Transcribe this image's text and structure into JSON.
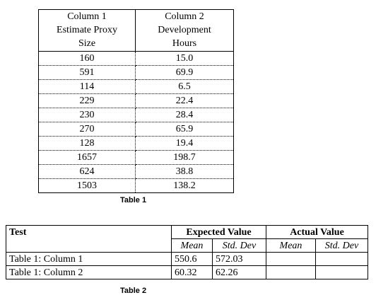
{
  "table1": {
    "header_lines": {
      "col1": [
        "Column 1",
        "Estimate Proxy",
        "Size"
      ],
      "col2": [
        "Column 2",
        "Development",
        "Hours"
      ]
    },
    "rows": [
      {
        "size": "160",
        "hours": "15.0"
      },
      {
        "size": "591",
        "hours": "69.9"
      },
      {
        "size": "114",
        "hours": "6.5"
      },
      {
        "size": "229",
        "hours": "22.4"
      },
      {
        "size": "230",
        "hours": "28.4"
      },
      {
        "size": "270",
        "hours": "65.9"
      },
      {
        "size": "128",
        "hours": "19.4"
      },
      {
        "size": "1657",
        "hours": "198.7"
      },
      {
        "size": "624",
        "hours": "38.8"
      },
      {
        "size": "1503",
        "hours": "138.2"
      }
    ],
    "caption": "Table 1"
  },
  "table2": {
    "test_header": "Test",
    "expected_header": "Expected Value",
    "actual_header": "Actual Value",
    "sub_headers": {
      "expected_mean": "Mean",
      "expected_std": "Std. Dev",
      "actual_mean": "Mean",
      "actual_std": "Std. Dev"
    },
    "rows": [
      {
        "test": "Table 1: Column 1",
        "expected_mean": "550.6",
        "expected_std": "572.03",
        "actual_mean": "",
        "actual_std": ""
      },
      {
        "test": "Table 1: Column 2",
        "expected_mean": "60.32",
        "expected_std": "62.26",
        "actual_mean": "",
        "actual_std": ""
      }
    ],
    "caption": "Table 2"
  }
}
